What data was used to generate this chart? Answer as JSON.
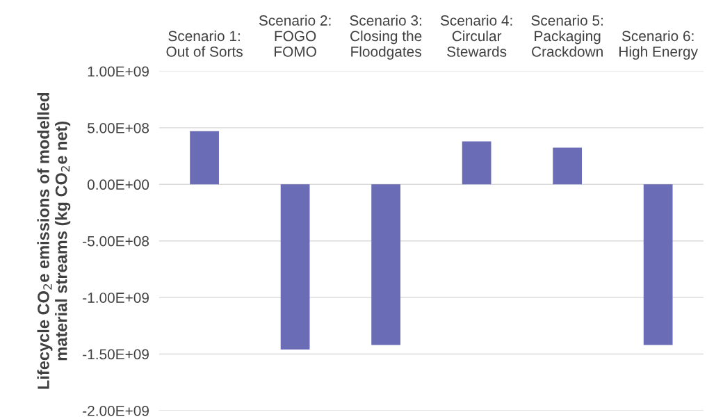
{
  "chart_data": {
    "type": "bar",
    "categories": [
      "Scenario 1:\nOut of Sorts",
      "Scenario 2:\nFOGO\nFOMO",
      "Scenario 3:\nClosing the\nFloodgates",
      "Scenario 4:\nCircular\nStewards",
      "Scenario 5:\nPackaging\nCrackdown",
      "Scenario 6:\nHigh Energy"
    ],
    "values": [
      470000000,
      -1460000000,
      -1420000000,
      380000000,
      325000000,
      -1420000000
    ],
    "color": "#6a6db5",
    "ylabel": "Lifecycle CO$_{2}$e emissions of modelled\nmaterial streams (kg CO$_{2}$e net)",
    "ylim": [
      -2000000000,
      1000000000
    ],
    "yticks": [
      {
        "value": -2000000000,
        "label": "-2.00E+09"
      },
      {
        "value": -1500000000,
        "label": "-1.50E+09"
      },
      {
        "value": -1000000000,
        "label": "-1.00E+09"
      },
      {
        "value": -500000000,
        "label": "-5.00E+08"
      },
      {
        "value": 0,
        "label": "0.00E+00"
      },
      {
        "value": 500000000,
        "label": "5.00E+08"
      },
      {
        "value": 1000000000,
        "label": "1.00E+09"
      }
    ],
    "grid": "y"
  }
}
